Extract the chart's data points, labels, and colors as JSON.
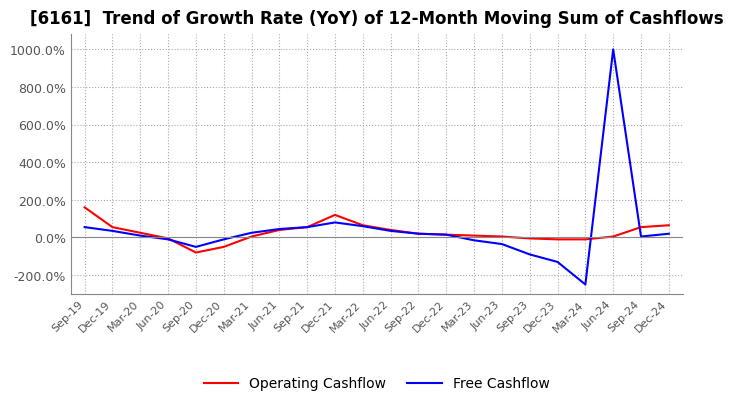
{
  "title": "[6161]  Trend of Growth Rate (YoY) of 12-Month Moving Sum of Cashflows",
  "title_fontsize": 12,
  "ylim": [
    -300,
    1080
  ],
  "yticks": [
    -200,
    0,
    200,
    400,
    600,
    800,
    1000
  ],
  "ytick_labels": [
    "-200.0%",
    "0.0%",
    "200.0%",
    "400.0%",
    "600.0%",
    "800.0%",
    "1000.0%"
  ],
  "background_color": "#ffffff",
  "grid_color": "#aaaaaa",
  "x_labels": [
    "Sep-19",
    "Dec-19",
    "Mar-20",
    "Jun-20",
    "Sep-20",
    "Dec-20",
    "Mar-21",
    "Jun-21",
    "Sep-21",
    "Dec-21",
    "Mar-22",
    "Jun-22",
    "Sep-22",
    "Dec-22",
    "Mar-23",
    "Jun-23",
    "Sep-23",
    "Dec-23",
    "Mar-24",
    "Jun-24",
    "Sep-24",
    "Dec-24"
  ],
  "operating_cashflow": [
    160,
    55,
    25,
    -5,
    -80,
    -50,
    5,
    40,
    55,
    120,
    65,
    40,
    20,
    15,
    10,
    5,
    -5,
    -10,
    -10,
    5,
    55,
    65
  ],
  "free_cashflow": [
    55,
    35,
    10,
    -10,
    -50,
    -10,
    25,
    45,
    55,
    80,
    60,
    35,
    20,
    15,
    -15,
    -35,
    -90,
    -130,
    -250,
    1000,
    5,
    20
  ],
  "op_color": "#ff0000",
  "free_color": "#0000ff",
  "legend_labels": [
    "Operating Cashflow",
    "Free Cashflow"
  ]
}
